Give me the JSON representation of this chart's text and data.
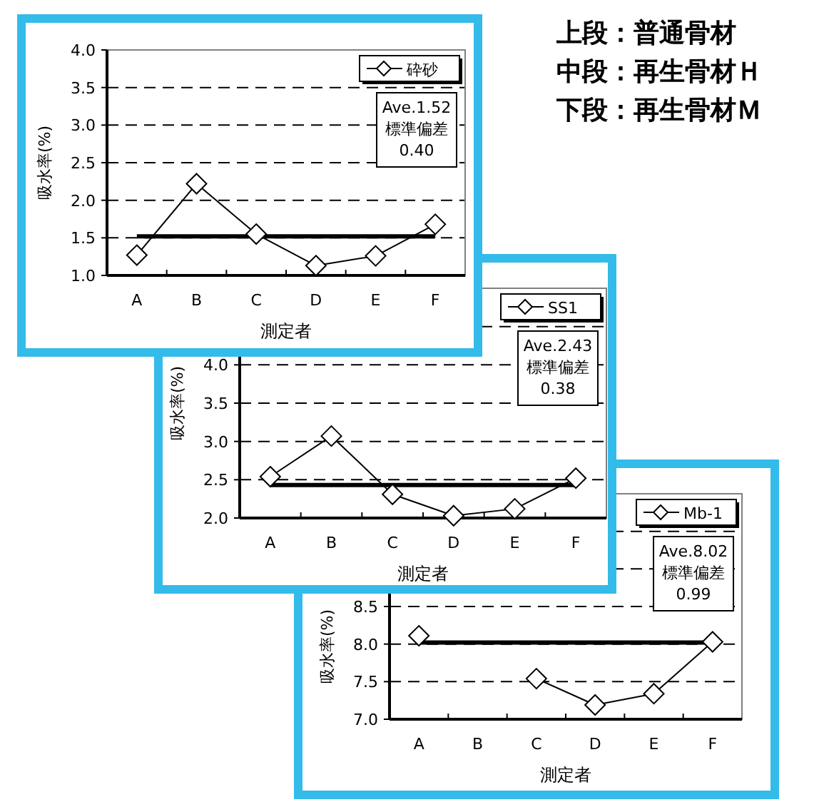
{
  "chart_data": [
    {
      "type": "line",
      "categories": [
        "A",
        "B",
        "C",
        "D",
        "E",
        "F"
      ],
      "xlabel": "測定者",
      "ylabel": "吸水率(%)",
      "series": [
        {
          "name": "砕砂",
          "color": "#000000",
          "values": [
            1.27,
            2.22,
            1.55,
            1.13,
            1.26,
            1.68
          ]
        }
      ],
      "ylim": [
        1,
        4
      ],
      "yticks": [
        {
          "value": 1,
          "label": "1.0"
        },
        {
          "value": 1.5,
          "label": "1.5"
        },
        {
          "value": 2,
          "label": "2.0"
        },
        {
          "value": 2.5,
          "label": "2.5"
        },
        {
          "value": 3,
          "label": "3.0"
        },
        {
          "value": 3.5,
          "label": "3.5"
        },
        {
          "value": 4,
          "label": "4.0"
        }
      ],
      "ref_lines": [
        {
          "axis": "y",
          "value": 1.52,
          "color": "#000000"
        }
      ],
      "annotations": [
        "Ave.1.52",
        "標準偏差",
        "0.40"
      ],
      "grid": "y",
      "legend": "top right",
      "marker": "diamond",
      "line_style": "solid"
    },
    {
      "type": "line",
      "categories": [
        "A",
        "B",
        "C",
        "D",
        "E",
        "F"
      ],
      "xlabel": "測定者",
      "ylabel": "吸水率(%)",
      "series": [
        {
          "name": "SS1",
          "color": "#000000",
          "values": [
            2.54,
            3.07,
            2.31,
            2.03,
            2.12,
            2.52
          ]
        }
      ],
      "ylim": [
        2,
        5
      ],
      "yticks": [
        {
          "value": 2,
          "label": "2.0"
        },
        {
          "value": 2.5,
          "label": "2.5"
        },
        {
          "value": 3,
          "label": "3.0"
        },
        {
          "value": 3.5,
          "label": "3.5"
        },
        {
          "value": 4,
          "label": "4.0"
        },
        {
          "value": 4.5,
          "label": null
        }
      ],
      "ref_lines": [
        {
          "axis": "y",
          "value": 2.43,
          "color": "#000000"
        }
      ],
      "annotations": [
        "Ave.2.43",
        "標準偏差",
        "0.38"
      ],
      "grid": "y",
      "legend": "top right",
      "marker": "diamond",
      "line_style": "solid"
    },
    {
      "type": "line",
      "categories": [
        "A",
        "B",
        "C",
        "D",
        "E",
        "F"
      ],
      "xlabel": "測定者",
      "ylabel": "吸水率(%)",
      "series": [
        {
          "name": "Mb-1",
          "color": "#000000",
          "values": [
            8.11,
            null,
            7.54,
            7.19,
            7.34,
            8.03
          ]
        }
      ],
      "ylim": [
        7,
        10
      ],
      "yticks": [
        {
          "value": 7,
          "label": "7.0"
        },
        {
          "value": 7.5,
          "label": "7.5"
        },
        {
          "value": 8,
          "label": "8.0"
        },
        {
          "value": 8.5,
          "label": "8.5"
        },
        {
          "value": 9,
          "label": null
        },
        {
          "value": 9.5,
          "label": null
        }
      ],
      "ref_lines": [
        {
          "axis": "y",
          "value": 8.02,
          "color": "#000000"
        }
      ],
      "annotations": [
        "Ave.8.02",
        "標準偏差",
        "0.99"
      ],
      "grid": "y",
      "legend": "top right",
      "marker": "diamond",
      "line_style": "solid"
    },
    {
      "type": "other",
      "annotations": [
        "上段：普通骨材",
        "中段：再生骨材Ｈ",
        "下段：再生骨材Ｍ"
      ]
    }
  ]
}
